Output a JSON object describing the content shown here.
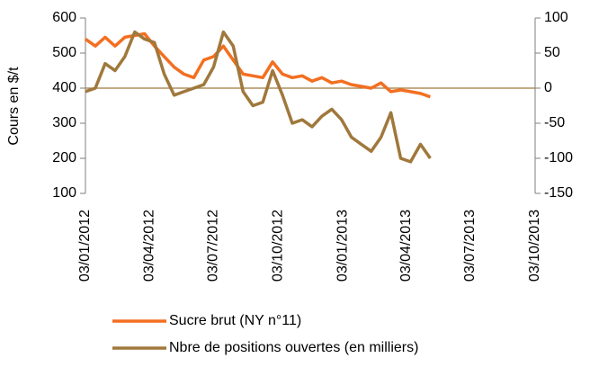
{
  "chart_data": {
    "type": "line",
    "ylabel": "Cours en $/t",
    "x": [
      "2012-01-03",
      "2012-01-17",
      "2012-01-31",
      "2012-02-14",
      "2012-02-28",
      "2012-03-13",
      "2012-03-27",
      "2012-04-10",
      "2012-04-24",
      "2012-05-08",
      "2012-05-22",
      "2012-06-05",
      "2012-06-19",
      "2012-07-03",
      "2012-07-17",
      "2012-07-31",
      "2012-08-14",
      "2012-08-28",
      "2012-09-11",
      "2012-09-25",
      "2012-10-09",
      "2012-10-23",
      "2012-11-06",
      "2012-11-20",
      "2012-12-04",
      "2012-12-18",
      "2013-01-01",
      "2013-01-15",
      "2013-01-29",
      "2013-02-12",
      "2013-02-26",
      "2013-03-12",
      "2013-03-26",
      "2013-04-09",
      "2013-04-23",
      "2013-05-07"
    ],
    "series": [
      {
        "name": "Sucre brut (NY n°11)",
        "color": "#f36f21",
        "values": [
          540,
          520,
          545,
          520,
          545,
          550,
          555,
          520,
          490,
          460,
          440,
          430,
          480,
          490,
          520,
          480,
          440,
          435,
          430,
          475,
          440,
          430,
          435,
          420,
          430,
          415,
          420,
          410,
          405,
          400,
          415,
          390,
          395,
          390,
          385,
          375
        ]
      },
      {
        "name": "Nbre de positions ouvertes (en milliers)",
        "color": "#a0783c",
        "axis": "y2",
        "values": [
          -5,
          0,
          35,
          25,
          45,
          80,
          70,
          65,
          20,
          -10,
          -5,
          0,
          5,
          30,
          80,
          60,
          -5,
          -25,
          -20,
          25,
          -10,
          -50,
          -45,
          -55,
          -40,
          -30,
          -45,
          -70,
          -80,
          -90,
          -70,
          -35,
          -100,
          -105,
          -80,
          -100
        ]
      }
    ],
    "xlim": [
      "2012-01-03",
      "2013-10-03"
    ],
    "xticks": [
      {
        "value": "2012-01-03",
        "label": "03/01/2012"
      },
      {
        "value": "2012-04-03",
        "label": "03/04/2012"
      },
      {
        "value": "2012-07-03",
        "label": "03/07/2012"
      },
      {
        "value": "2012-10-03",
        "label": "03/10/2012"
      },
      {
        "value": "2013-01-03",
        "label": "03/01/2013"
      },
      {
        "value": "2013-04-03",
        "label": "03/04/2013"
      },
      {
        "value": "2013-07-03",
        "label": "03/07/2013"
      },
      {
        "value": "2013-10-03",
        "label": "03/10/2013"
      }
    ],
    "ylim": [
      100,
      600
    ],
    "yticks": [
      100,
      200,
      300,
      400,
      500,
      600
    ],
    "y2lim": [
      -150,
      100
    ],
    "y2ticks": [
      -150,
      -100,
      -50,
      0,
      50,
      100
    ],
    "legend": "bottom"
  }
}
